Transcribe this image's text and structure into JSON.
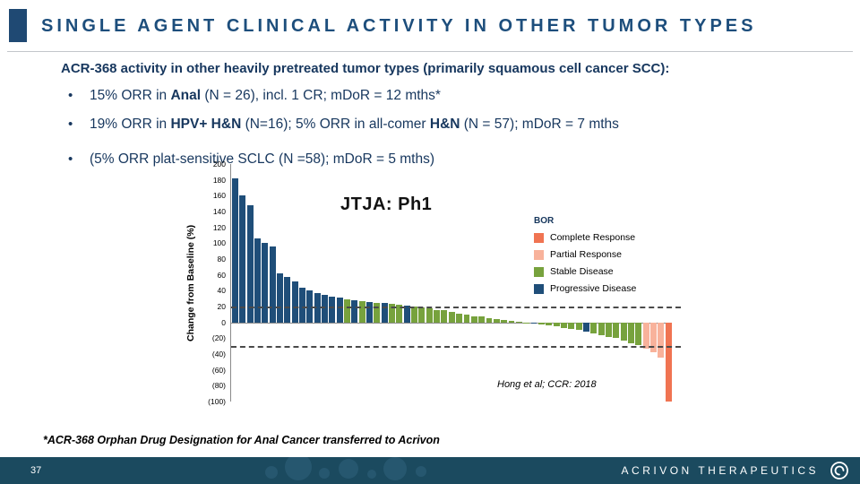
{
  "slide": {
    "title": "SINGLE AGENT CLINICAL ACTIVITY IN OTHER TUMOR TYPES",
    "page_number": "37",
    "company": "ACRIVON THERAPEUTICS",
    "footnote": "*ACR-368 Orphan Drug Designation for Anal Cancer transferred to Acrivon"
  },
  "body": {
    "lead": "ACR-368 activity in other heavily pretreated tumor types (primarily squamous cell cancer SCC):",
    "bullets": [
      {
        "seg1": "15% ORR in ",
        "bold1": "Anal",
        "seg2": " (N = 26), incl. 1 CR; mDoR = 12 mths*"
      },
      {
        "seg1": "19% ORR in ",
        "bold1": "HPV+ H&N",
        "seg2": " (N=16); 5% ORR in all-comer ",
        "bold2": "H&N",
        "seg3": " (N = 57); mDoR = 7 mths"
      },
      {
        "seg1": "(5% ORR plat-sensitive SCLC (N =58); mDoR = 5 mths)"
      }
    ]
  },
  "chart_data": {
    "type": "bar",
    "subtype": "waterfall",
    "title": "JTJA: Ph1",
    "ylabel": "Change from Baseline (%)",
    "ylim": [
      -100,
      200
    ],
    "grid": false,
    "ytick_values": [
      200,
      180,
      160,
      140,
      120,
      100,
      80,
      60,
      40,
      20,
      0,
      -20,
      -40,
      -60,
      -80,
      -100
    ],
    "ytick_labels": [
      "200",
      "180",
      "160",
      "140",
      "120",
      "100",
      "80",
      "60",
      "40",
      "20",
      "0",
      "(20)",
      "(40)",
      "(60)",
      "(80)",
      "(100)"
    ],
    "reference_lines": [
      20,
      -30
    ],
    "annotation": "Hong et al; CCR: 2018",
    "legend": {
      "title": "BOR",
      "position": "upper-right",
      "entries": [
        {
          "label": "Complete Response",
          "color": "#F07452"
        },
        {
          "label": "Partial Response",
          "color": "#F8B29B"
        },
        {
          "label": "Stable Disease",
          "color": "#77A23D"
        },
        {
          "label": "Progressive Disease",
          "color": "#1F4E79"
        }
      ]
    },
    "color_map": {
      "CR": "#F07452",
      "PR": "#F8B29B",
      "SD": "#77A23D",
      "PD": "#1F4E79"
    },
    "bars": [
      [
        182,
        "PD"
      ],
      [
        160,
        "PD"
      ],
      [
        148,
        "PD"
      ],
      [
        106,
        "PD"
      ],
      [
        100,
        "PD"
      ],
      [
        96,
        "PD"
      ],
      [
        62,
        "PD"
      ],
      [
        57,
        "PD"
      ],
      [
        52,
        "PD"
      ],
      [
        44,
        "PD"
      ],
      [
        40,
        "PD"
      ],
      [
        37,
        "PD"
      ],
      [
        35,
        "PD"
      ],
      [
        33,
        "PD"
      ],
      [
        31,
        "PD"
      ],
      [
        29,
        "SD"
      ],
      [
        28,
        "PD"
      ],
      [
        27,
        "SD"
      ],
      [
        26,
        "PD"
      ],
      [
        25,
        "SD"
      ],
      [
        24,
        "PD"
      ],
      [
        23,
        "SD"
      ],
      [
        22,
        "SD"
      ],
      [
        21,
        "PD"
      ],
      [
        20,
        "SD"
      ],
      [
        19,
        "SD"
      ],
      [
        18,
        "SD"
      ],
      [
        16,
        "SD"
      ],
      [
        15,
        "SD"
      ],
      [
        13,
        "SD"
      ],
      [
        11,
        "SD"
      ],
      [
        10,
        "SD"
      ],
      [
        8,
        "SD"
      ],
      [
        7,
        "SD"
      ],
      [
        5,
        "SD"
      ],
      [
        4,
        "SD"
      ],
      [
        3,
        "SD"
      ],
      [
        2,
        "SD"
      ],
      [
        1,
        "SD"
      ],
      [
        -1,
        "SD"
      ],
      [
        -2,
        "PD"
      ],
      [
        -3,
        "SD"
      ],
      [
        -4,
        "SD"
      ],
      [
        -5,
        "SD"
      ],
      [
        -7,
        "SD"
      ],
      [
        -8,
        "SD"
      ],
      [
        -10,
        "SD"
      ],
      [
        -12,
        "PD"
      ],
      [
        -14,
        "SD"
      ],
      [
        -16,
        "SD"
      ],
      [
        -18,
        "SD"
      ],
      [
        -20,
        "SD"
      ],
      [
        -23,
        "SD"
      ],
      [
        -26,
        "SD"
      ],
      [
        -29,
        "SD"
      ],
      [
        -33,
        "PR"
      ],
      [
        -38,
        "PR"
      ],
      [
        -45,
        "PR"
      ],
      [
        -100,
        "CR"
      ]
    ]
  }
}
